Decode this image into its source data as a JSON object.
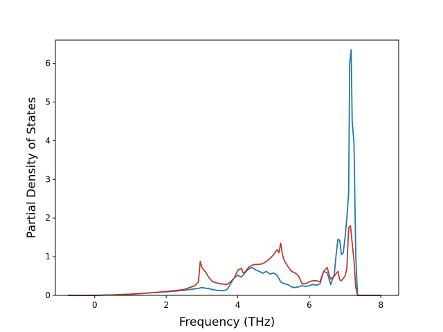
{
  "chart_data": {
    "type": "line",
    "title": "",
    "xlabel": "Frequency (THz)",
    "ylabel": "Partial Density of States",
    "xlim": [
      -1.1,
      8.5
    ],
    "ylim": [
      0,
      6.6
    ],
    "x_ticks": [
      0,
      2,
      4,
      6,
      8
    ],
    "x_tick_labels": [
      "0",
      "2",
      "4",
      "6",
      "8"
    ],
    "y_ticks": [
      0,
      1,
      2,
      3,
      4,
      5,
      6
    ],
    "y_tick_labels": [
      "0",
      "1",
      "2",
      "3",
      "4",
      "5",
      "6"
    ],
    "grid": false,
    "legend": "none",
    "series": [
      {
        "color": "#1f77b4",
        "points": [
          [
            -0.75,
            0
          ],
          [
            0,
            0
          ],
          [
            0.5,
            0.01
          ],
          [
            1,
            0.03
          ],
          [
            1.5,
            0.06
          ],
          [
            2,
            0.09
          ],
          [
            2.5,
            0.13
          ],
          [
            2.9,
            0.18
          ],
          [
            3.0,
            0.2
          ],
          [
            3.2,
            0.17
          ],
          [
            3.4,
            0.13
          ],
          [
            3.6,
            0.12
          ],
          [
            3.7,
            0.15
          ],
          [
            3.8,
            0.3
          ],
          [
            3.9,
            0.45
          ],
          [
            4.0,
            0.52
          ],
          [
            4.1,
            0.47
          ],
          [
            4.2,
            0.58
          ],
          [
            4.3,
            0.68
          ],
          [
            4.4,
            0.72
          ],
          [
            4.5,
            0.66
          ],
          [
            4.6,
            0.62
          ],
          [
            4.7,
            0.57
          ],
          [
            4.8,
            0.62
          ],
          [
            4.9,
            0.55
          ],
          [
            5.0,
            0.58
          ],
          [
            5.1,
            0.52
          ],
          [
            5.2,
            0.35
          ],
          [
            5.3,
            0.3
          ],
          [
            5.4,
            0.28
          ],
          [
            5.5,
            0.22
          ],
          [
            5.6,
            0.2
          ],
          [
            5.7,
            0.22
          ],
          [
            5.8,
            0.25
          ],
          [
            5.9,
            0.23
          ],
          [
            6.0,
            0.25
          ],
          [
            6.1,
            0.28
          ],
          [
            6.2,
            0.26
          ],
          [
            6.3,
            0.3
          ],
          [
            6.4,
            0.62
          ],
          [
            6.5,
            0.58
          ],
          [
            6.6,
            0.28
          ],
          [
            6.7,
            0.55
          ],
          [
            6.75,
            1.05
          ],
          [
            6.8,
            1.45
          ],
          [
            6.85,
            1.42
          ],
          [
            6.9,
            1.05
          ],
          [
            6.95,
            1.1
          ],
          [
            7.0,
            1.5
          ],
          [
            7.05,
            2.0
          ],
          [
            7.1,
            2.65
          ],
          [
            7.13,
            6.0
          ],
          [
            7.17,
            6.35
          ],
          [
            7.2,
            4.5
          ],
          [
            7.25,
            3.95
          ],
          [
            7.3,
            1.0
          ],
          [
            7.35,
            0
          ],
          [
            8.0,
            0
          ]
        ]
      },
      {
        "color": "#c0392b",
        "points": [
          [
            -0.75,
            0
          ],
          [
            0,
            0
          ],
          [
            0.5,
            0.01
          ],
          [
            1,
            0.03
          ],
          [
            1.5,
            0.06
          ],
          [
            2,
            0.1
          ],
          [
            2.5,
            0.15
          ],
          [
            2.8,
            0.25
          ],
          [
            2.9,
            0.35
          ],
          [
            2.95,
            0.88
          ],
          [
            3.0,
            0.72
          ],
          [
            3.1,
            0.6
          ],
          [
            3.2,
            0.45
          ],
          [
            3.3,
            0.35
          ],
          [
            3.5,
            0.3
          ],
          [
            3.7,
            0.28
          ],
          [
            3.8,
            0.35
          ],
          [
            3.9,
            0.45
          ],
          [
            4.0,
            0.65
          ],
          [
            4.1,
            0.7
          ],
          [
            4.15,
            0.58
          ],
          [
            4.2,
            0.6
          ],
          [
            4.3,
            0.72
          ],
          [
            4.4,
            0.78
          ],
          [
            4.5,
            0.8
          ],
          [
            4.6,
            0.8
          ],
          [
            4.7,
            0.82
          ],
          [
            4.8,
            0.88
          ],
          [
            4.9,
            0.95
          ],
          [
            5.0,
            1.05
          ],
          [
            5.1,
            1.18
          ],
          [
            5.15,
            1.1
          ],
          [
            5.2,
            1.35
          ],
          [
            5.25,
            1.05
          ],
          [
            5.3,
            0.9
          ],
          [
            5.4,
            0.75
          ],
          [
            5.5,
            0.62
          ],
          [
            5.6,
            0.58
          ],
          [
            5.7,
            0.5
          ],
          [
            5.8,
            0.3
          ],
          [
            5.9,
            0.3
          ],
          [
            6.0,
            0.35
          ],
          [
            6.1,
            0.38
          ],
          [
            6.2,
            0.38
          ],
          [
            6.3,
            0.35
          ],
          [
            6.4,
            0.62
          ],
          [
            6.5,
            0.72
          ],
          [
            6.55,
            0.55
          ],
          [
            6.6,
            0.42
          ],
          [
            6.7,
            0.5
          ],
          [
            6.8,
            0.62
          ],
          [
            6.85,
            0.4
          ],
          [
            6.9,
            0.38
          ],
          [
            7.0,
            0.5
          ],
          [
            7.05,
            0.7
          ],
          [
            7.1,
            1.75
          ],
          [
            7.15,
            1.8
          ],
          [
            7.2,
            1.35
          ],
          [
            7.25,
            0.9
          ],
          [
            7.3,
            0.2
          ],
          [
            7.35,
            0
          ],
          [
            8.0,
            0
          ]
        ]
      }
    ]
  }
}
